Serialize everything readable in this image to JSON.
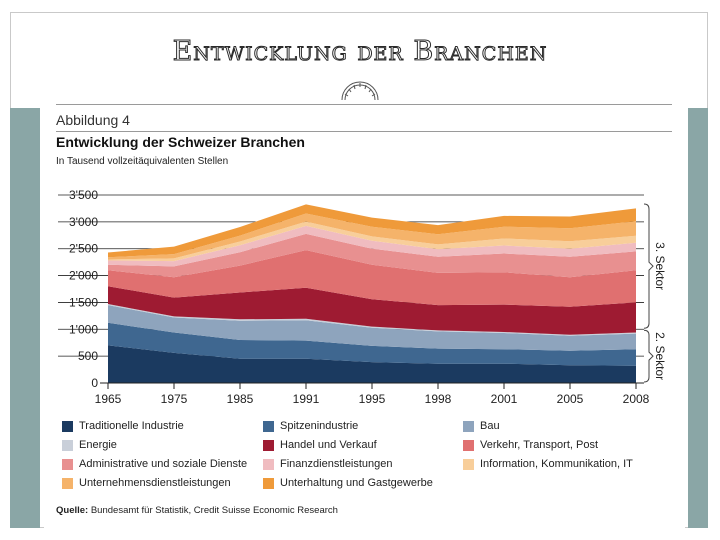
{
  "slide": {
    "title": "Entwicklung der Branchen"
  },
  "figure": {
    "label": "Abbildung 4",
    "title": "Entwicklung der Schweizer Branchen",
    "subtitle": "In Tausend vollzeitäquivalenten Stellen",
    "source_label": "Quelle:",
    "source_text": "Bundesamt für Statistik, Credit Suisse Economic Research"
  },
  "chart_data": {
    "type": "area",
    "stacked": true,
    "x": [
      "1965",
      "1975",
      "1985",
      "1991",
      "1995",
      "1998",
      "2001",
      "2005",
      "2008"
    ],
    "ylim": [
      0,
      3500
    ],
    "yticks": [
      0,
      500,
      1000,
      1500,
      2000,
      2500,
      3000,
      3500
    ],
    "ytick_labels": [
      "0",
      "500",
      "1'000",
      "1'500",
      "2'000",
      "2'500",
      "3'000",
      "3'500"
    ],
    "grid": "horizontal",
    "legend_position": "bottom",
    "brackets": [
      {
        "label": "3. Sektor",
        "range": [
          1000,
          3350
        ]
      },
      {
        "label": "2. Sektor",
        "range": [
          0,
          1000
        ]
      }
    ],
    "series": [
      {
        "name": "Traditionelle Industrie",
        "color": "#1b3a60",
        "values": [
          700,
          560,
          450,
          450,
          390,
          360,
          360,
          330,
          320
        ]
      },
      {
        "name": "Spitzenindustrie",
        "color": "#3f6790",
        "values": [
          420,
          380,
          350,
          340,
          300,
          280,
          270,
          270,
          310
        ]
      },
      {
        "name": "Bau",
        "color": "#8ea4bd",
        "values": [
          330,
          280,
          360,
          380,
          340,
          320,
          300,
          280,
          290
        ]
      },
      {
        "name": "Energie",
        "color": "#c9cfd9",
        "values": [
          20,
          20,
          25,
          25,
          20,
          20,
          20,
          20,
          20
        ]
      },
      {
        "name": "Handel und Verkauf",
        "color": "#9e1b32",
        "values": [
          330,
          350,
          500,
          580,
          510,
          470,
          510,
          520,
          560
        ]
      },
      {
        "name": "Verkehr, Transport, Post",
        "color": "#e07070",
        "values": [
          300,
          380,
          500,
          700,
          640,
          600,
          600,
          550,
          600
        ]
      },
      {
        "name": "Administrative und soziale Dienste",
        "color": "#e89090",
        "values": [
          100,
          200,
          250,
          300,
          300,
          300,
          350,
          380,
          350
        ]
      },
      {
        "name": "Finanzdienstleistungen",
        "color": "#f0bcc0",
        "values": [
          80,
          100,
          130,
          150,
          150,
          140,
          150,
          150,
          160
        ]
      },
      {
        "name": "Information, Kommunikation, IT",
        "color": "#f8ce9a",
        "values": [
          20,
          50,
          70,
          80,
          80,
          90,
          130,
          140,
          130
        ]
      },
      {
        "name": "Unternehmensdienstleistungen",
        "color": "#f5b36a",
        "values": [
          40,
          80,
          110,
          150,
          180,
          190,
          220,
          240,
          270
        ]
      },
      {
        "name": "Unterhaltung und Gastgewerbe",
        "color": "#ef9a3a",
        "values": [
          90,
          140,
          160,
          170,
          170,
          170,
          200,
          220,
          240
        ]
      }
    ]
  }
}
